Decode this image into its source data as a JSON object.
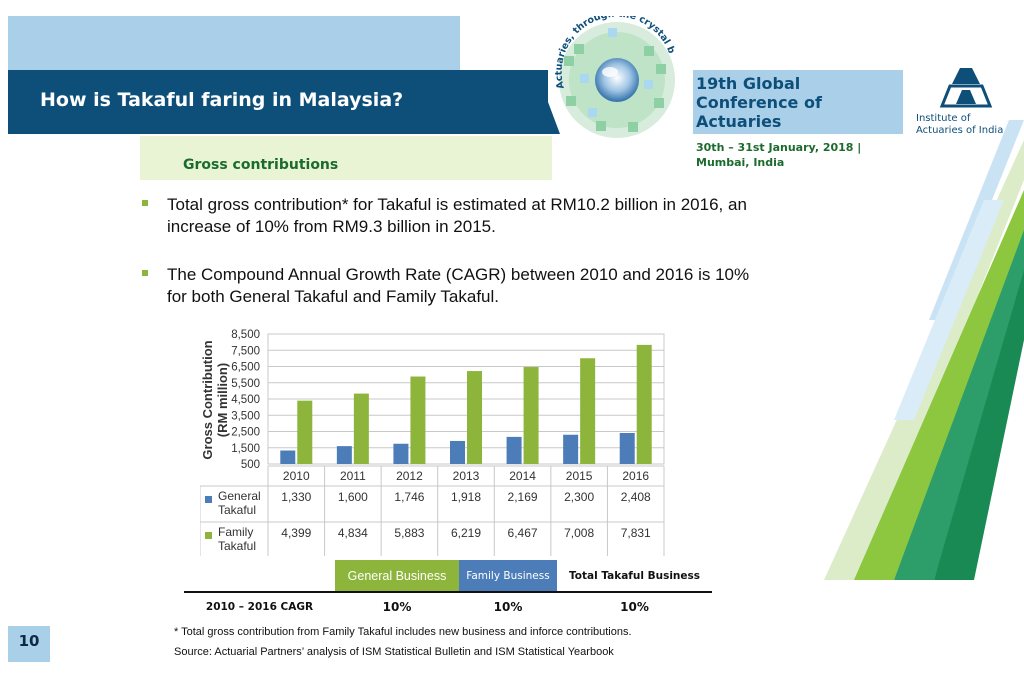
{
  "header": {
    "title": "How is Takaful faring in Malaysia?",
    "conference_title": "19th Global Conference of Actuaries",
    "conference_dates": "30th – 31st January, 2018 | Mumbai, India",
    "logo_ring_text": "Actuaries, through the crystal ball!",
    "institute_name": "Institute of Actuaries of India"
  },
  "section": {
    "subtitle": "Gross contributions"
  },
  "bullets": [
    "Total gross contribution* for Takaful is estimated at RM10.2 billion in 2016, an increase of 10% from RM9.3 billion in 2015.",
    "The Compound Annual Growth Rate (CAGR) between 2010 and 2016 is 10% for both General Takaful and Family Takaful."
  ],
  "chart_data": {
    "type": "bar",
    "ylabel": "Gross Contribution (RM million)",
    "xlabel": "",
    "categories": [
      "2010",
      "2011",
      "2012",
      "2013",
      "2014",
      "2015",
      "2016"
    ],
    "ylim": [
      500,
      8500
    ],
    "yticks": [
      "8,500",
      "7,500",
      "6,500",
      "5,500",
      "4,500",
      "3,500",
      "2,500",
      "1,500",
      "500"
    ],
    "series": [
      {
        "name": "General Takaful",
        "color": "#4d7db8",
        "values": [
          1330,
          1600,
          1746,
          1918,
          2169,
          2300,
          2408
        ],
        "labels": [
          "1,330",
          "1,600",
          "1,746",
          "1,918",
          "2,169",
          "2,300",
          "2,408"
        ]
      },
      {
        "name": "Family Takaful",
        "color": "#8db53c",
        "values": [
          4399,
          4834,
          5883,
          6219,
          6467,
          7008,
          7831
        ],
        "labels": [
          "4,399",
          "4,834",
          "5,883",
          "6,219",
          "6,467",
          "7,008",
          "7,831"
        ]
      }
    ],
    "legend": "data table below chart"
  },
  "cagr_table": {
    "headers": [
      "General Business",
      "Family Business",
      "Total Takaful Business"
    ],
    "row_label": "2010 – 2016 CAGR",
    "values": [
      "10%",
      "10%",
      "10%"
    ],
    "colors": {
      "general": "#8db53c",
      "family": "#4d7db8"
    }
  },
  "footnotes": {
    "note": "* Total gross contribution from Family Takaful includes new business and inforce contributions.",
    "source": "Source: Actuarial Partners’ analysis of ISM Statistical Bulletin and ISM Statistical Yearbook"
  },
  "page_number": "10"
}
